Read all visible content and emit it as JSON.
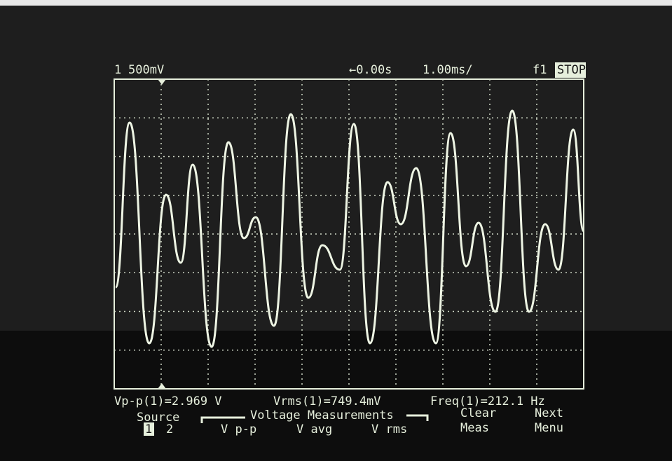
{
  "header": {
    "channel": "1",
    "scale": "500mV",
    "delay": "←0.00s",
    "timebase": "1.00ms/",
    "trigger": "f1",
    "status": "STOP"
  },
  "measurements": [
    "Vp-p(1)=2.969 V",
    "Vrms(1)=749.4mV",
    "Freq(1)=212.1 Hz"
  ],
  "softkeys": {
    "source": {
      "label": "Source",
      "options": [
        "1",
        "2"
      ]
    },
    "group": "Voltage Measurements",
    "items": [
      "V p-p",
      "V avg",
      "V rms"
    ],
    "clear": [
      "Clear",
      "Meas"
    ],
    "next": [
      "Next",
      "Menu"
    ]
  }
}
